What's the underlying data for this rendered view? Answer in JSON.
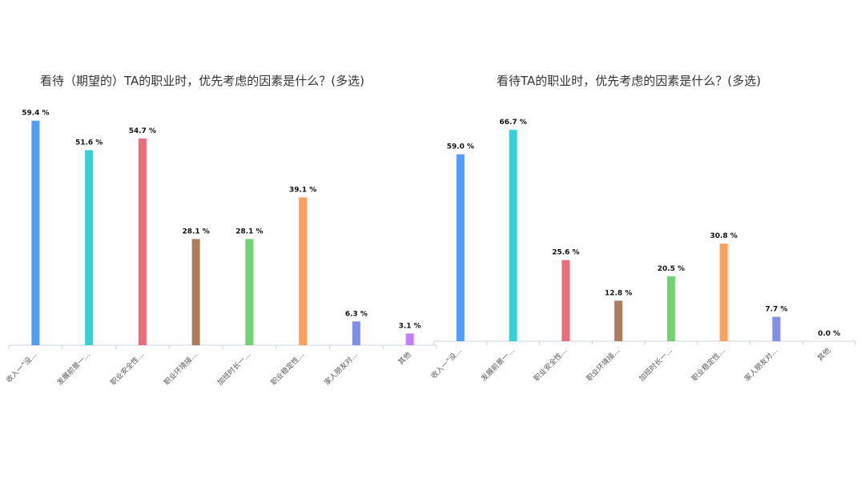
{
  "chart_data": [
    {
      "type": "bar",
      "title": "看待（期望的）TA的职业时，优先考虑的因素是什么？(多选)",
      "categories": [
        "收入一“没…",
        "发展前景一…",
        "职业安全性…",
        "职业环境接…",
        "加班时长一…",
        "职业稳定性…",
        "家人朋友对…",
        "其他"
      ],
      "values": [
        59.4,
        51.6,
        54.7,
        28.1,
        28.1,
        39.1,
        6.3,
        3.1
      ],
      "value_labels": [
        "59.4 %",
        "51.6 %",
        "54.7 %",
        "28.1 %",
        "28.1 %",
        "39.1 %",
        "6.3 %",
        "3.1 %"
      ],
      "colors": [
        "#4f9cf9",
        "#36d1d6",
        "#f06b7a",
        "#b07b5a",
        "#6fd46f",
        "#ff9f5a",
        "#7f8ee8",
        "#c77dff"
      ],
      "xlabel": "",
      "ylabel": "",
      "grid": false
    },
    {
      "type": "bar",
      "title": "看待TA的职业时，优先考虑的因素是什么？(多选)",
      "categories": [
        "收入一“没…",
        "发展前景一…",
        "职业安全性…",
        "职业环境接…",
        "加班时长一…",
        "职业稳定性…",
        "家人朋友对…",
        "其他"
      ],
      "values": [
        59.0,
        66.7,
        25.6,
        12.8,
        20.5,
        30.8,
        7.7,
        0.0
      ],
      "value_labels": [
        "59.0 %",
        "66.7 %",
        "25.6 %",
        "12.8 %",
        "20.5 %",
        "30.8 %",
        "7.7 %",
        "0.0 %"
      ],
      "colors": [
        "#4f9cf9",
        "#36d1d6",
        "#f06b7a",
        "#b07b5a",
        "#6fd46f",
        "#ff9f5a",
        "#7f8ee8",
        "#c77dff"
      ],
      "xlabel": "",
      "ylabel": "",
      "grid": false
    }
  ]
}
